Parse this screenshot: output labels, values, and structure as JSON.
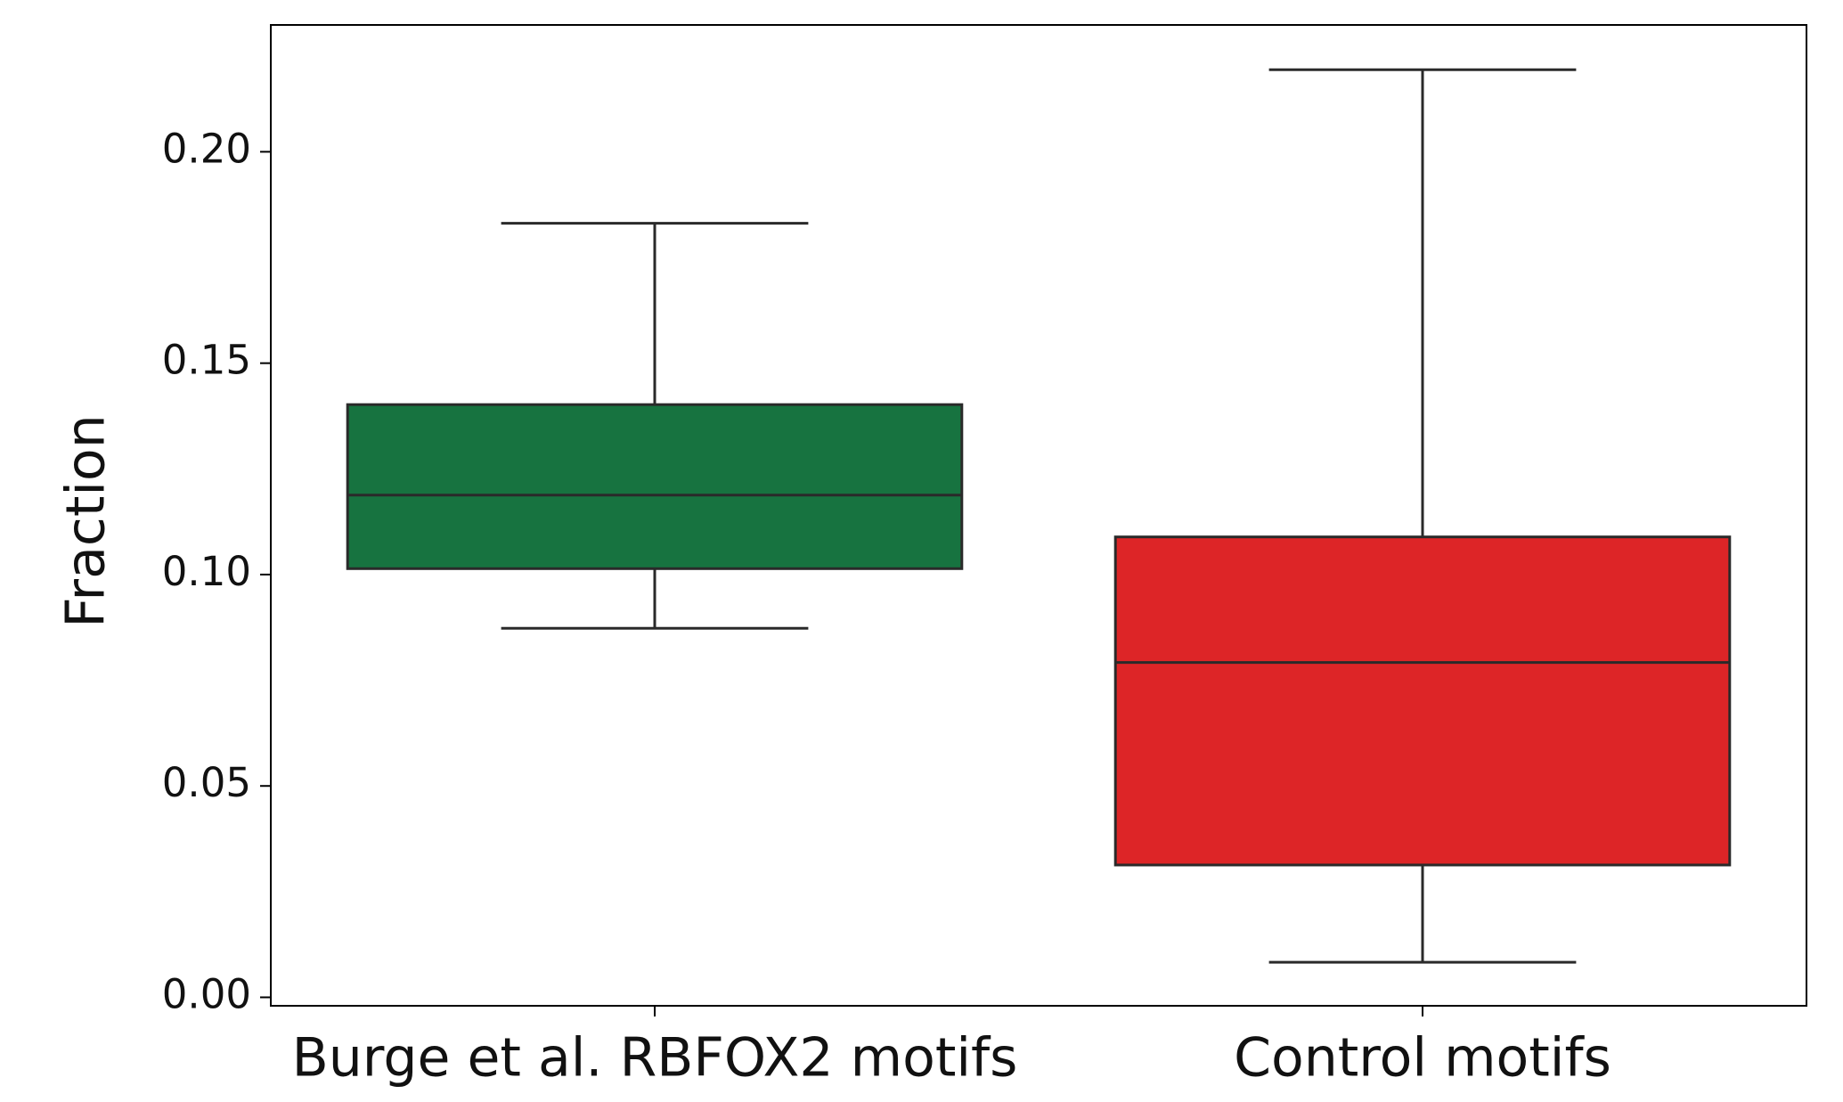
{
  "chart_data": {
    "type": "box",
    "y_label": "Fraction",
    "categories": [
      "Burge et al. RBFOX2 motifs",
      "Control motifs"
    ],
    "colors": [
      "#177340",
      "#dd2527"
    ],
    "boxes": [
      {
        "whislo": 0.0873,
        "q1": 0.1014,
        "med": 0.1188,
        "q3": 0.1402,
        "whishi": 0.1831
      },
      {
        "whislo": 0.0083,
        "q1": 0.0313,
        "med": 0.0792,
        "q3": 0.1089,
        "whishi": 0.2194
      }
    ],
    "ylim": [
      -0.002,
      0.23
    ],
    "yticks": [
      {
        "value": 0,
        "label": "0.00"
      },
      {
        "value": 0.05,
        "label": "0.05"
      },
      {
        "value": 0.1,
        "label": "0.10"
      },
      {
        "value": 0.15,
        "label": "0.15"
      },
      {
        "value": 0.2,
        "label": "0.20"
      }
    ]
  }
}
